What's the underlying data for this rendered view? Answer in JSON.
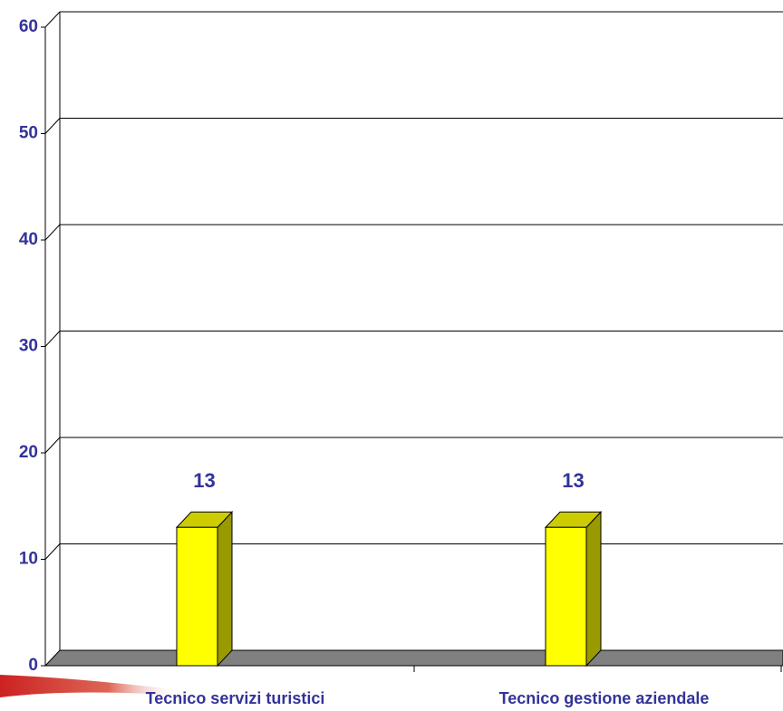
{
  "chart_data": {
    "type": "bar3d",
    "categories": [
      "Tecnico servizi turistici",
      "Tecnico gestione aziendale"
    ],
    "values": [
      13,
      13
    ],
    "color": "#ffff00",
    "ylim": [
      0,
      60
    ],
    "yticks": [
      0,
      10,
      20,
      30,
      40,
      50,
      60
    ],
    "grid": true
  }
}
